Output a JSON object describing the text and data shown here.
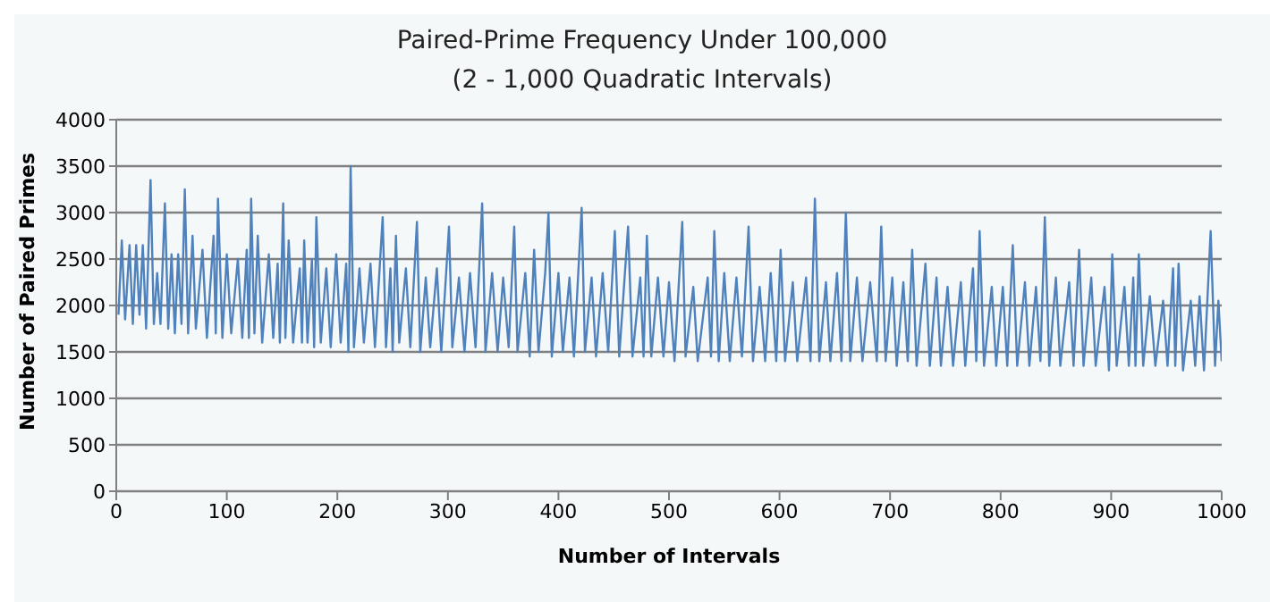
{
  "chart_data": {
    "type": "line",
    "title": "Paired-Prime Frequency Under 100,000",
    "subtitle": "(2 - 1,000 Quadratic Intervals)",
    "xlabel": "Number of Intervals",
    "ylabel": "Number of Paired Primes",
    "xlim": [
      0,
      1000
    ],
    "xticks": [
      0,
      100,
      200,
      300,
      400,
      500,
      600,
      700,
      800,
      900,
      1000
    ],
    "ylim": [
      0,
      4000
    ],
    "yticks": [
      0,
      500,
      1000,
      1500,
      2000,
      2500,
      3000,
      3500,
      4000
    ],
    "grid": "y",
    "marker": "none",
    "line_style": "solid",
    "series": [
      {
        "color": "#4f81bd",
        "x": [
          2,
          5,
          8,
          12,
          15,
          18,
          21,
          24,
          27,
          31,
          34,
          37,
          40,
          44,
          47,
          50,
          53,
          56,
          59,
          62,
          65,
          69,
          72,
          78,
          82,
          88,
          90,
          92,
          96,
          100,
          104,
          110,
          114,
          118,
          120,
          122,
          125,
          128,
          132,
          138,
          142,
          146,
          148,
          151,
          153,
          156,
          160,
          166,
          168,
          170,
          173,
          177,
          179,
          181,
          185,
          190,
          194,
          199,
          203,
          208,
          210,
          212,
          215,
          220,
          224,
          230,
          234,
          241,
          244,
          248,
          250,
          253,
          256,
          262,
          266,
          272,
          275,
          280,
          284,
          290,
          294,
          301,
          304,
          310,
          315,
          320,
          325,
          331,
          334,
          340,
          345,
          350,
          355,
          360,
          363,
          370,
          374,
          378,
          382,
          388,
          391,
          394,
          400,
          404,
          410,
          414,
          421,
          424,
          430,
          434,
          440,
          445,
          451,
          455,
          463,
          467,
          474,
          477,
          480,
          484,
          490,
          495,
          500,
          505,
          512,
          515,
          522,
          526,
          535,
          538,
          541,
          545,
          550,
          555,
          561,
          566,
          572,
          576,
          582,
          587,
          592,
          597,
          601,
          605,
          612,
          616,
          624,
          628,
          632,
          636,
          642,
          646,
          652,
          656,
          660,
          664,
          670,
          675,
          682,
          688,
          692,
          696,
          702,
          706,
          712,
          716,
          720,
          724,
          732,
          736,
          742,
          746,
          752,
          757,
          764,
          768,
          775,
          778,
          781,
          785,
          792,
          796,
          802,
          806,
          811,
          815,
          822,
          826,
          832,
          836,
          840,
          844,
          850,
          854,
          862,
          866,
          871,
          875,
          882,
          886,
          894,
          898,
          901,
          905,
          912,
          916,
          920,
          922,
          925,
          929,
          935,
          940,
          947,
          951,
          956,
          958,
          961,
          965,
          972,
          976,
          980,
          984,
          990,
          994,
          997,
          1000
        ],
        "values": [
          1900,
          2700,
          1850,
          2650,
          1800,
          2650,
          1900,
          2650,
          1750,
          3350,
          1800,
          2350,
          1800,
          3100,
          1750,
          2550,
          1700,
          2550,
          1800,
          3250,
          1700,
          2750,
          1750,
          2600,
          1650,
          2750,
          1700,
          3150,
          1650,
          2550,
          1700,
          2500,
          1650,
          2600,
          1650,
          3150,
          1700,
          2750,
          1600,
          2550,
          1650,
          2450,
          1600,
          3100,
          1650,
          2700,
          1600,
          2400,
          1600,
          2700,
          1600,
          2500,
          1550,
          2950,
          1600,
          2400,
          1550,
          2550,
          1600,
          2450,
          1500,
          3500,
          1550,
          2400,
          1600,
          2450,
          1550,
          2950,
          1550,
          2400,
          1500,
          2750,
          1600,
          2400,
          1550,
          2900,
          1500,
          2300,
          1550,
          2400,
          1500,
          2850,
          1550,
          2300,
          1500,
          2350,
          1550,
          3100,
          1500,
          2350,
          1500,
          2300,
          1550,
          2850,
          1500,
          2350,
          1450,
          2600,
          1500,
          2350,
          3000,
          1450,
          2350,
          1500,
          2300,
          1450,
          3050,
          1500,
          2300,
          1450,
          2350,
          1500,
          2800,
          1450,
          2850,
          1450,
          2300,
          1450,
          2750,
          1450,
          2300,
          1450,
          2250,
          1400,
          2900,
          1450,
          2200,
          1400,
          2300,
          1450,
          2800,
          1400,
          2350,
          1400,
          2300,
          1450,
          2850,
          1400,
          2200,
          1400,
          2350,
          1400,
          2600,
          1400,
          2250,
          1400,
          2300,
          1400,
          3150,
          1400,
          2250,
          1400,
          2350,
          1400,
          3000,
          1400,
          2300,
          1400,
          2250,
          1400,
          2850,
          1400,
          2300,
          1350,
          2250,
          1400,
          2600,
          1350,
          2450,
          1350,
          2300,
          1350,
          2200,
          1350,
          2250,
          1350,
          2400,
          1400,
          2800,
          1350,
          2200,
          1350,
          2200,
          1350,
          2650,
          1350,
          2250,
          1350,
          2200,
          1400,
          2950,
          1350,
          2300,
          1350,
          2250,
          1350,
          2600,
          1350,
          2300,
          1350,
          2200,
          1300,
          2550,
          1350,
          2200,
          1350,
          2300,
          1350,
          2550,
          1350,
          2100,
          1350,
          2050,
          1350,
          2400,
          1350,
          2450,
          1300,
          2050,
          1350,
          2100,
          1300,
          2800,
          1350,
          2050,
          1400
        ]
      }
    ]
  }
}
